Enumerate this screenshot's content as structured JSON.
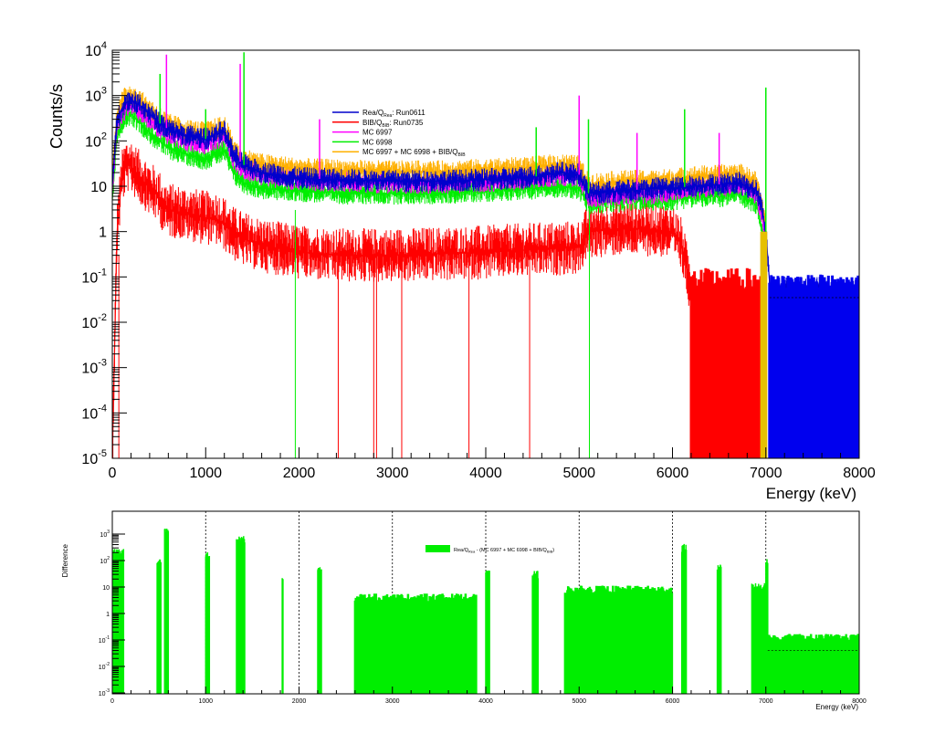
{
  "chart_data": [
    {
      "type": "line",
      "panel": "top",
      "ylabel": "Counts/s",
      "xlabel": "Energy (keV)",
      "xlim": [
        0,
        8000
      ],
      "ylim": [
        1e-05,
        10000
      ],
      "yscale": "log",
      "grid": false,
      "legend_position": "top-center",
      "x_ticks": [
        "0",
        "1000",
        "2000",
        "3000",
        "4000",
        "5000",
        "6000",
        "7000",
        "8000"
      ],
      "y_ticks": [
        {
          "base": "10",
          "exp": "4"
        },
        {
          "base": "10",
          "exp": "3"
        },
        {
          "base": "10",
          "exp": "2"
        },
        {
          "base": "10",
          "exp": ""
        },
        {
          "base": "1",
          "exp": ""
        },
        {
          "base": "10",
          "exp": "-1"
        },
        {
          "base": "10",
          "exp": "-2"
        },
        {
          "base": "10",
          "exp": "-3"
        },
        {
          "base": "10",
          "exp": "-4"
        },
        {
          "base": "10",
          "exp": "-5"
        }
      ],
      "legend": [
        {
          "pre": "Rea/Q",
          "sub": "Rea",
          "post": ": Run0611",
          "color": "#0000cc"
        },
        {
          "pre": "BIB/Q",
          "sub": "BIB",
          "post": ": Run0735",
          "color": "#ff0000"
        },
        {
          "pre": "MC 6997",
          "sub": "",
          "post": "",
          "color": "#ff00ff"
        },
        {
          "pre": "MC 6998",
          "sub": "",
          "post": "",
          "color": "#00ee00"
        },
        {
          "pre": "MC 6997 + MC 6998 +  BIB/Q",
          "sub": "BIB",
          "post": "",
          "color": "#ffb000"
        }
      ],
      "series": [
        {
          "key": "rea",
          "color": "#0000cc",
          "x": [
            0,
            50,
            100,
            150,
            200,
            300,
            400,
            500,
            600,
            800,
            1000,
            1100,
            1200,
            1300,
            1400,
            1600,
            2000,
            2500,
            3000,
            3500,
            4000,
            4500,
            4800,
            5000,
            5100,
            5500,
            5800,
            6000,
            6200,
            6500,
            6700,
            6900,
            6950,
            7000,
            7050,
            7500,
            8000
          ],
          "y": [
            10,
            300,
            500,
            700,
            800,
            600,
            400,
            250,
            180,
            130,
            110,
            140,
            160,
            50,
            30,
            20,
            15,
            14,
            13,
            13,
            14,
            16,
            20,
            18,
            7,
            8,
            9,
            9,
            10,
            11,
            12,
            8,
            4,
            1,
            0.04,
            0.04,
            0.04
          ]
        },
        {
          "key": "bib",
          "color": "#ff0000",
          "x": [
            0,
            50,
            100,
            150,
            200,
            300,
            400,
            500,
            550,
            600,
            800,
            1000,
            1100,
            1200,
            1300,
            1400,
            1600,
            2000,
            2500,
            3000,
            4000,
            4500,
            5000,
            5100,
            5500,
            5800,
            6000,
            6100,
            6200
          ],
          "y": [
            1e-05,
            1,
            15,
            30,
            28,
            15,
            9,
            6,
            3.5,
            3,
            2.5,
            2,
            2,
            1.5,
            0.9,
            0.7,
            0.5,
            0.35,
            0.3,
            0.3,
            0.35,
            0.4,
            0.45,
            1,
            1.2,
            1.1,
            1,
            0.5,
            0.05
          ]
        },
        {
          "key": "mc6997",
          "color": "#ff00ff",
          "x": [
            0,
            50,
            100,
            150,
            200,
            300,
            400,
            500,
            600,
            800,
            1000,
            1100,
            1200,
            1300,
            1400,
            1600,
            2000,
            2500,
            3000,
            3500,
            4000,
            4500,
            4800,
            5000,
            5100,
            5500,
            5800,
            6000,
            6200,
            6500,
            6700,
            6900,
            7000
          ],
          "y": [
            8,
            250,
            400,
            550,
            650,
            450,
            300,
            200,
            140,
            100,
            90,
            110,
            130,
            40,
            25,
            18,
            14,
            13,
            12,
            12,
            13,
            15,
            18,
            16,
            6,
            7,
            7,
            8,
            9,
            10,
            11,
            7,
            1
          ]
        },
        {
          "key": "mc6998",
          "color": "#00ee00",
          "x": [
            0,
            50,
            100,
            150,
            200,
            300,
            400,
            500,
            600,
            800,
            1000,
            1100,
            1200,
            1300,
            1400,
            1600,
            2000,
            2500,
            3000,
            3500,
            4000,
            4500,
            4800,
            5000,
            5100,
            5500,
            5800,
            6000,
            6200,
            6500,
            6700,
            6900,
            7000
          ],
          "y": [
            5,
            150,
            250,
            350,
            400,
            250,
            150,
            100,
            70,
            50,
            40,
            50,
            60,
            20,
            12,
            9,
            8,
            7,
            7,
            7,
            8,
            9,
            10,
            9,
            4,
            5,
            5,
            5,
            6,
            6,
            7,
            4,
            0.5
          ]
        },
        {
          "key": "sum",
          "color": "#ffb000",
          "x": [
            0,
            50,
            100,
            150,
            200,
            300,
            400,
            500,
            600,
            800,
            1000,
            1100,
            1200,
            1300,
            1400,
            1600,
            2000,
            2500,
            3000,
            3500,
            4000,
            4500,
            4800,
            5000,
            5100,
            5500,
            5800,
            6000,
            6200,
            6500,
            6700,
            6900,
            7000
          ],
          "y": [
            15,
            400,
            700,
            950,
            1100,
            750,
            500,
            330,
            230,
            170,
            150,
            180,
            210,
            70,
            40,
            30,
            24,
            22,
            21,
            21,
            23,
            26,
            30,
            27,
            11,
            13,
            13,
            14,
            16,
            17,
            19,
            12,
            1.5
          ]
        }
      ],
      "peaks": [
        {
          "x": 511,
          "y": 3000
        },
        {
          "x": 580,
          "y": 8000
        },
        {
          "x": 1000,
          "y": 500
        },
        {
          "x": 1370,
          "y": 5000
        },
        {
          "x": 1410,
          "y": 9000
        },
        {
          "x": 2220,
          "y": 300
        },
        {
          "x": 4540,
          "y": 200
        },
        {
          "x": 5000,
          "y": 1000
        },
        {
          "x": 5100,
          "y": 300
        },
        {
          "x": 5620,
          "y": 150
        },
        {
          "x": 6130,
          "y": 500
        },
        {
          "x": 6500,
          "y": 150
        },
        {
          "x": 7000,
          "y": 1500
        }
      ]
    },
    {
      "type": "line",
      "panel": "bottom",
      "ylabel": "Difference",
      "xlabel": "Energy (keV)",
      "xlim": [
        0,
        8000
      ],
      "ylim": [
        0.001,
        10000
      ],
      "yscale": "log",
      "grid": true,
      "legend_position": "top-center",
      "x_ticks": [
        "0",
        "1000",
        "2000",
        "3000",
        "4000",
        "5000",
        "6000",
        "7000",
        "8000"
      ],
      "y_ticks": [
        {
          "base": "10",
          "exp": "3"
        },
        {
          "base": "10",
          "exp": "2"
        },
        {
          "base": "10",
          "exp": ""
        },
        {
          "base": "1",
          "exp": ""
        },
        {
          "base": "10",
          "exp": "-1"
        },
        {
          "base": "10",
          "exp": "-2"
        },
        {
          "base": "10",
          "exp": "-3"
        }
      ],
      "legend": {
        "pre": "Rea/Q",
        "sub": "Rea",
        "mid": " - (MC 6997 + MC 6998 + BIB/Q",
        "sub2": "BIB",
        "post": ")",
        "color": "#00ee00"
      },
      "series": [
        {
          "key": "diff",
          "color": "#00ee00",
          "clusters": [
            {
              "x0": 0,
              "x1": 120,
              "y": 200
            },
            {
              "x0": 480,
              "x1": 520,
              "y": 80
            },
            {
              "x0": 560,
              "x1": 600,
              "y": 1200
            },
            {
              "x0": 1000,
              "x1": 1040,
              "y": 150
            },
            {
              "x0": 1330,
              "x1": 1420,
              "y": 600
            },
            {
              "x0": 1820,
              "x1": 1830,
              "y": 20
            },
            {
              "x0": 2200,
              "x1": 2240,
              "y": 40
            },
            {
              "x0": 2600,
              "x1": 3900,
              "y": 4
            },
            {
              "x0": 4000,
              "x1": 4040,
              "y": 30
            },
            {
              "x0": 4500,
              "x1": 4560,
              "y": 30
            },
            {
              "x0": 4850,
              "x1": 6000,
              "y": 8
            },
            {
              "x0": 6100,
              "x1": 6150,
              "y": 300
            },
            {
              "x0": 6480,
              "x1": 6520,
              "y": 50
            },
            {
              "x0": 6850,
              "x1": 7000,
              "y": 10
            },
            {
              "x0": 7000,
              "x1": 7020,
              "y": 100
            },
            {
              "x0": 7020,
              "x1": 8000,
              "y": 0.12
            }
          ]
        }
      ]
    }
  ]
}
